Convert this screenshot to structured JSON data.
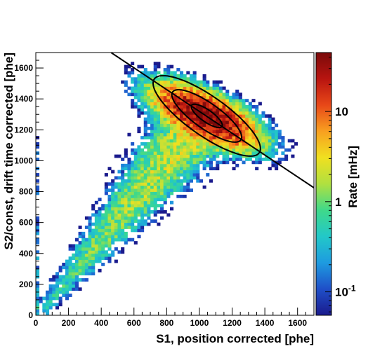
{
  "chart_data": {
    "type": "heatmap",
    "title": "",
    "xlabel": "S1, position corrected [phe]",
    "ylabel": "S2/const, drift time corrected [phe]",
    "xlim": [
      0,
      1700
    ],
    "ylim": [
      0,
      1700
    ],
    "x_ticks": [
      "0",
      "200",
      "400",
      "600",
      "800",
      "1000",
      "1200",
      "1400",
      "1600"
    ],
    "y_ticks": [
      "0",
      "200",
      "400",
      "600",
      "800",
      "1000",
      "1200",
      "1400",
      "1600"
    ],
    "colorbar": {
      "label": "Rate [mHz]",
      "scale": "log",
      "range": [
        0.055,
        45
      ],
      "major_ticks": [
        {
          "value": 0.1,
          "base": "10",
          "exp": "-1"
        },
        {
          "value": 1,
          "base": "1",
          "exp": ""
        },
        {
          "value": 10,
          "base": "10",
          "exp": ""
        }
      ],
      "colors": [
        "#1a1a8c",
        "#1f4fc8",
        "#1e9be0",
        "#22c8c8",
        "#3fd98a",
        "#b0e040",
        "#f0e020",
        "#f8a020",
        "#e84818",
        "#b81410",
        "#7a0a0a"
      ]
    },
    "density_model": {
      "main_peak": {
        "x": 1040,
        "y": 1290,
        "sx": 140,
        "sy": 90,
        "rho": -0.65,
        "peak_rate": 40
      },
      "band": {
        "from_x": 60,
        "from_y": 60,
        "to_x": 1000,
        "to_y": 1250,
        "width": 110,
        "rate": 2.2
      },
      "bins": 85
    },
    "overlays": {
      "cut_line": {
        "points": [
          [
            460,
            1700
          ],
          [
            1700,
            825
          ]
        ]
      },
      "ellipses": [
        {
          "cx": 1045,
          "cy": 1290,
          "a": 400,
          "b": 125,
          "angle_deg": -37
        },
        {
          "cx": 1045,
          "cy": 1290,
          "a": 260,
          "b": 82,
          "angle_deg": -37
        },
        {
          "cx": 1045,
          "cy": 1290,
          "a": 115,
          "b": 38,
          "angle_deg": -37
        }
      ]
    }
  }
}
